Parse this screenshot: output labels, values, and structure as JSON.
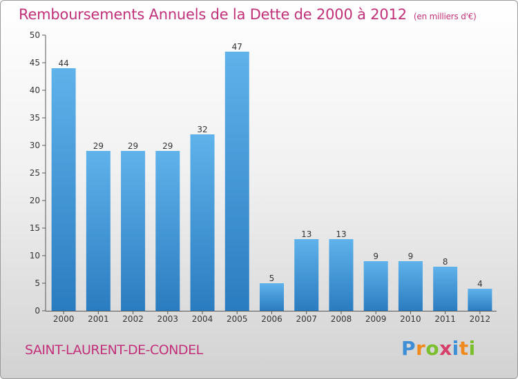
{
  "header": {
    "title": "Remboursements Annuels de la Dette de 2000 à 2012",
    "unit": "(en milliers d'€)"
  },
  "commune": "SAINT-LAURENT-DE-CONDEL",
  "logo": {
    "letters": [
      "P",
      "r",
      "o",
      "x",
      "i",
      "t",
      "i"
    ],
    "colors": [
      "#3f8fd6",
      "#f08a1e",
      "#7bbf2e",
      "#d63f6a",
      "#3f8fd6",
      "#f08a1e",
      "#7bbf2e"
    ]
  },
  "chart_data": {
    "type": "bar",
    "categories": [
      "2000",
      "2001",
      "2002",
      "2003",
      "2004",
      "2005",
      "2006",
      "2007",
      "2008",
      "2009",
      "2010",
      "2011",
      "2012"
    ],
    "values": [
      44,
      29,
      29,
      29,
      32,
      47,
      5,
      13,
      13,
      9,
      9,
      8,
      4
    ],
    "title": "Remboursements Annuels de la Dette de 2000 à 2012",
    "ylim": [
      0,
      50
    ],
    "yticks": [
      0,
      5,
      10,
      15,
      20,
      25,
      30,
      35,
      40,
      45,
      50
    ],
    "grid": false,
    "bar_color": "#4ea2e0"
  }
}
